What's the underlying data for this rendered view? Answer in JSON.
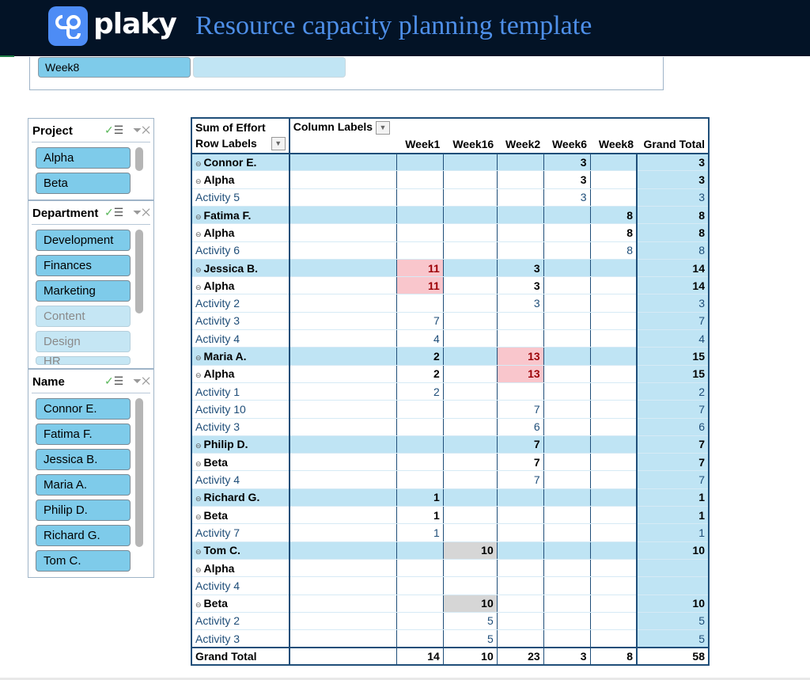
{
  "header": {
    "logo_text": "plaky",
    "title": "Resource capacity planning template",
    "brand_color": "#4d8cf5",
    "title_color": "#4e8fe8"
  },
  "week_slicer": {
    "items": [
      {
        "label": "Week8",
        "selected": true
      },
      {
        "label": "",
        "selected": false
      }
    ]
  },
  "slicers": [
    {
      "title": "Project",
      "items": [
        {
          "label": "Alpha",
          "selected": true
        },
        {
          "label": "Beta",
          "selected": true
        }
      ]
    },
    {
      "title": "Department",
      "items": [
        {
          "label": "Development",
          "selected": true
        },
        {
          "label": "Finances",
          "selected": true
        },
        {
          "label": "Marketing",
          "selected": true
        },
        {
          "label": "Content",
          "selected": false
        },
        {
          "label": "Design",
          "selected": false
        },
        {
          "label": "HR",
          "selected": false
        }
      ]
    },
    {
      "title": "Name",
      "items": [
        {
          "label": "Connor E.",
          "selected": true
        },
        {
          "label": "Fatima F.",
          "selected": true
        },
        {
          "label": "Jessica B.",
          "selected": true
        },
        {
          "label": "Maria A.",
          "selected": true
        },
        {
          "label": "Philip D.",
          "selected": true
        },
        {
          "label": "Richard G.",
          "selected": true
        },
        {
          "label": "Tom C.",
          "selected": true
        }
      ]
    }
  ],
  "pivot": {
    "value_label": "Sum of Effort",
    "column_labels": "Column Labels",
    "row_labels": "Row Labels",
    "columns": [
      "Week1",
      "Week16",
      "Week2",
      "Week6",
      "Week8",
      "Grand Total"
    ],
    "rows": [
      {
        "label": "Connor E.",
        "level": 1,
        "values": [
          "",
          "",
          "",
          "3",
          "",
          "3"
        ]
      },
      {
        "label": "Alpha",
        "level": 2,
        "values": [
          "",
          "",
          "",
          "3",
          "",
          "3"
        ]
      },
      {
        "label": "Activity 5",
        "level": 3,
        "values": [
          "",
          "",
          "",
          "3",
          "",
          "3"
        ]
      },
      {
        "label": "Fatima F.",
        "level": 1,
        "values": [
          "",
          "",
          "",
          "",
          "8",
          "8"
        ]
      },
      {
        "label": "Alpha",
        "level": 2,
        "values": [
          "",
          "",
          "",
          "",
          "8",
          "8"
        ]
      },
      {
        "label": "Activity 6",
        "level": 3,
        "values": [
          "",
          "",
          "",
          "",
          "8",
          "8"
        ]
      },
      {
        "label": "Jessica B.",
        "level": 1,
        "values": [
          "11",
          "",
          "3",
          "",
          "",
          "14"
        ],
        "highlight": {
          "0": "pink"
        }
      },
      {
        "label": "Alpha",
        "level": 2,
        "values": [
          "11",
          "",
          "3",
          "",
          "",
          "14"
        ],
        "highlight": {
          "0": "pink"
        }
      },
      {
        "label": "Activity 2",
        "level": 3,
        "values": [
          "",
          "",
          "3",
          "",
          "",
          "3"
        ]
      },
      {
        "label": "Activity 3",
        "level": 3,
        "values": [
          "7",
          "",
          "",
          "",
          "",
          "7"
        ]
      },
      {
        "label": "Activity 4",
        "level": 3,
        "values": [
          "4",
          "",
          "",
          "",
          "",
          "4"
        ]
      },
      {
        "label": "Maria A.",
        "level": 1,
        "values": [
          "2",
          "",
          "13",
          "",
          "",
          "15"
        ],
        "highlight": {
          "2": "pink"
        }
      },
      {
        "label": "Alpha",
        "level": 2,
        "values": [
          "2",
          "",
          "13",
          "",
          "",
          "15"
        ],
        "highlight": {
          "2": "pink"
        }
      },
      {
        "label": "Activity 1",
        "level": 3,
        "values": [
          "2",
          "",
          "",
          "",
          "",
          "2"
        ]
      },
      {
        "label": "Activity 10",
        "level": 3,
        "values": [
          "",
          "",
          "7",
          "",
          "",
          "7"
        ]
      },
      {
        "label": "Activity 3",
        "level": 3,
        "values": [
          "",
          "",
          "6",
          "",
          "",
          "6"
        ]
      },
      {
        "label": "Philip D.",
        "level": 1,
        "values": [
          "",
          "",
          "7",
          "",
          "",
          "7"
        ]
      },
      {
        "label": "Beta",
        "level": 2,
        "values": [
          "",
          "",
          "7",
          "",
          "",
          "7"
        ]
      },
      {
        "label": "Activity 4",
        "level": 3,
        "values": [
          "",
          "",
          "7",
          "",
          "",
          "7"
        ]
      },
      {
        "label": "Richard G.",
        "level": 1,
        "values": [
          "1",
          "",
          "",
          "",
          "",
          "1"
        ]
      },
      {
        "label": "Beta",
        "level": 2,
        "values": [
          "1",
          "",
          "",
          "",
          "",
          "1"
        ]
      },
      {
        "label": "Activity 7",
        "level": 3,
        "values": [
          "1",
          "",
          "",
          "",
          "",
          "1"
        ]
      },
      {
        "label": "Tom C.",
        "level": 1,
        "values": [
          "",
          "10",
          "",
          "",
          "",
          "10"
        ],
        "highlight": {
          "1": "gray"
        }
      },
      {
        "label": "Alpha",
        "level": 2,
        "values": [
          "",
          "",
          "",
          "",
          "",
          ""
        ]
      },
      {
        "label": "Activity 4",
        "level": 3,
        "values": [
          "",
          "",
          "",
          "",
          "",
          ""
        ]
      },
      {
        "label": "Beta",
        "level": 2,
        "values": [
          "",
          "10",
          "",
          "",
          "",
          "10"
        ],
        "highlight": {
          "1": "gray"
        }
      },
      {
        "label": "Activity 2",
        "level": 3,
        "values": [
          "",
          "5",
          "",
          "",
          "",
          "5"
        ]
      },
      {
        "label": "Activity 3",
        "level": 3,
        "values": [
          "",
          "5",
          "",
          "",
          "",
          "5"
        ]
      }
    ],
    "grand_total": {
      "label": "Grand Total",
      "values": [
        "14",
        "10",
        "23",
        "3",
        "8",
        "58"
      ]
    }
  }
}
